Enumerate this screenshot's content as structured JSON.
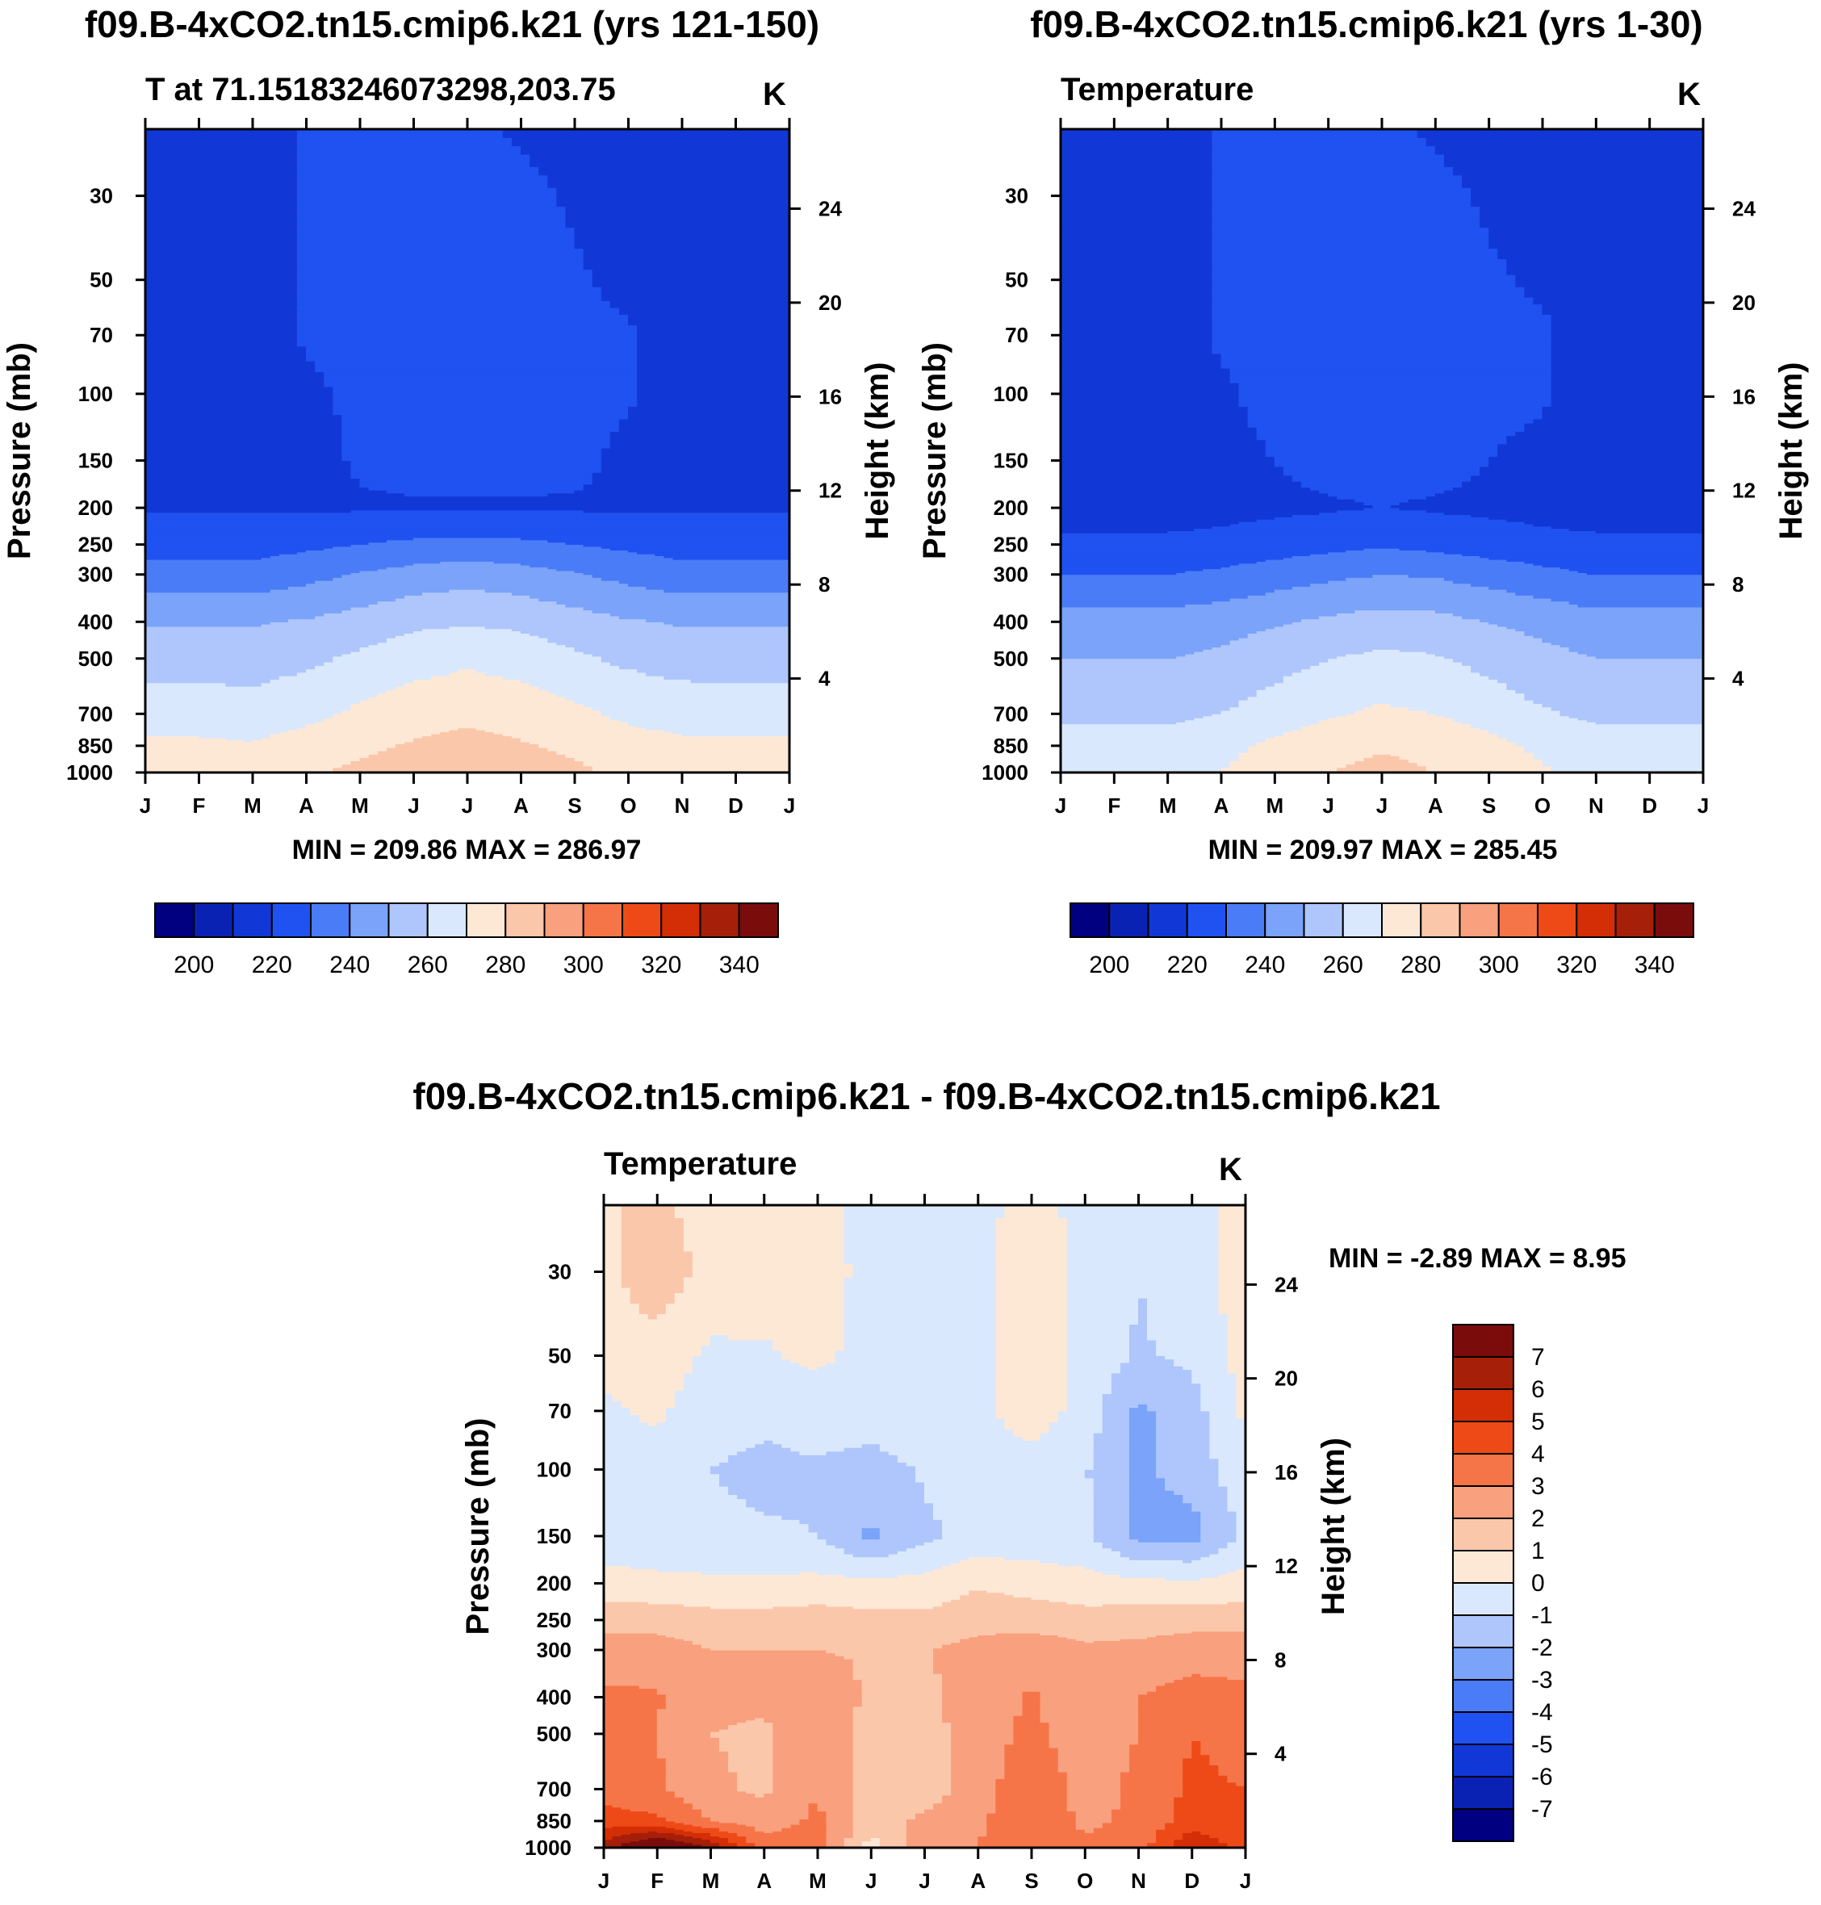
{
  "colors": {
    "palette": [
      "#000080",
      "#0a22b4",
      "#1138d6",
      "#1f52f0",
      "#4b7cf7",
      "#7aa3f9",
      "#aec6fb",
      "#d9e8fd",
      "#fde8d6",
      "#fbc7ab",
      "#f9a07e",
      "#f67548",
      "#ee4a18",
      "#d42e06",
      "#a51f09",
      "#7a0c0c"
    ]
  },
  "figure": {
    "panels": [
      {
        "title": "f09.B-4xCO2.tn15.cmip6.k21 (yrs 121-150)",
        "subtitle": "T at 71.15183246073298,203.75",
        "units": "K",
        "minmax": "MIN = 209.86 MAX = 286.97"
      },
      {
        "title": "f09.B-4xCO2.tn15.cmip6.k21 (yrs 1-30)",
        "subtitle": "Temperature",
        "units": "K",
        "minmax": "MIN = 209.97 MAX = 285.45"
      },
      {
        "title": "f09.B-4xCO2.tn15.cmip6.k21 - f09.B-4xCO2.tn15.cmip6.k21",
        "subtitle": "Temperature",
        "units": "K",
        "minmax": "MIN =  -2.89 MAX =   8.95"
      }
    ]
  },
  "chart_data": [
    {
      "type": "heatmap",
      "kind": "filled-contour",
      "title": "f09.B-4xCO2.tn15.cmip6.k21 (yrs 121-150)",
      "subtitle": "T at 71.15183246073298,203.75",
      "units": "K",
      "xlabel": "",
      "ylabel": "Pressure (mb)",
      "ylabel_right": "Height (km)",
      "x_ticks": [
        "J",
        "F",
        "M",
        "A",
        "M",
        "J",
        "J",
        "A",
        "S",
        "O",
        "N",
        "D",
        "J"
      ],
      "y_ticks": [
        "30",
        "50",
        "70",
        "100",
        "150",
        "200",
        "250",
        "300",
        "400",
        "500",
        "700",
        "850",
        "1000"
      ],
      "y_ticks_right": [
        "24",
        "20",
        "16",
        "12",
        "8",
        "4"
      ],
      "ylim": [
        1000,
        20
      ],
      "contour_levels": [
        200,
        210,
        220,
        230,
        240,
        250,
        260,
        270,
        280,
        290,
        300,
        310,
        320,
        330,
        340
      ],
      "colorbar_labels": [
        "200",
        "220",
        "240",
        "260",
        "280",
        "300",
        "320",
        "340"
      ],
      "min": 209.86,
      "max": 286.97,
      "months": [
        "J",
        "F",
        "M",
        "A",
        "M",
        "J",
        "J",
        "A",
        "S",
        "O",
        "N",
        "D",
        "J"
      ],
      "levels_mb": [
        1000,
        850,
        700,
        500,
        400,
        300,
        250,
        200,
        150,
        100,
        70,
        50,
        30,
        20
      ],
      "values": [
        [
          276,
          275,
          275,
          279,
          282,
          284,
          285,
          284,
          282,
          278,
          276,
          276,
          276
        ],
        [
          272,
          272,
          271,
          275,
          278,
          281,
          283,
          281,
          278,
          274,
          272,
          272,
          272
        ],
        [
          265,
          265,
          264,
          267,
          272,
          276,
          278,
          276,
          272,
          268,
          266,
          265,
          265
        ],
        [
          256,
          256,
          256,
          258,
          262,
          266,
          268,
          266,
          262,
          258,
          256,
          256,
          256
        ],
        [
          249,
          249,
          249,
          251,
          254,
          258,
          259,
          258,
          254,
          251,
          249,
          249,
          249
        ],
        [
          234,
          234,
          234,
          237,
          241,
          244,
          246,
          244,
          241,
          237,
          234,
          234,
          234
        ],
        [
          226,
          226,
          226,
          228,
          230,
          232,
          233,
          232,
          230,
          228,
          226,
          226,
          226
        ],
        [
          219,
          219,
          219,
          219,
          219,
          219,
          219,
          219,
          219,
          219,
          219,
          219,
          219
        ],
        [
          216,
          216,
          216,
          217,
          221,
          223,
          223,
          223,
          222,
          218,
          216,
          216,
          216
        ],
        [
          216,
          216,
          216,
          218,
          222,
          223,
          223,
          223,
          222,
          221,
          216,
          216,
          216
        ],
        [
          216,
          216,
          216,
          221,
          223,
          223,
          223,
          223,
          222,
          221,
          216,
          216,
          216
        ],
        [
          216,
          216,
          216,
          221,
          223,
          223,
          223,
          223,
          221,
          218,
          216,
          216,
          216
        ],
        [
          216,
          216,
          216,
          221,
          222,
          223,
          223,
          222,
          219,
          216,
          216,
          216,
          216
        ],
        [
          216,
          216,
          216,
          221,
          222,
          223,
          222,
          219,
          217,
          216,
          216,
          216,
          216
        ]
      ]
    },
    {
      "type": "heatmap",
      "kind": "filled-contour",
      "title": "f09.B-4xCO2.tn15.cmip6.k21 (yrs 1-30)",
      "subtitle": "Temperature",
      "units": "K",
      "xlabel": "",
      "ylabel": "Pressure (mb)",
      "ylabel_right": "Height (km)",
      "x_ticks": [
        "J",
        "F",
        "M",
        "A",
        "M",
        "J",
        "J",
        "A",
        "S",
        "O",
        "N",
        "D",
        "J"
      ],
      "y_ticks": [
        "30",
        "50",
        "70",
        "100",
        "150",
        "200",
        "250",
        "300",
        "400",
        "500",
        "700",
        "850",
        "1000"
      ],
      "y_ticks_right": [
        "24",
        "20",
        "16",
        "12",
        "8",
        "4"
      ],
      "ylim": [
        1000,
        20
      ],
      "contour_levels": [
        200,
        210,
        220,
        230,
        240,
        250,
        260,
        270,
        280,
        290,
        300,
        310,
        320,
        330,
        340
      ],
      "colorbar_labels": [
        "200",
        "220",
        "240",
        "260",
        "280",
        "300",
        "320",
        "340"
      ],
      "min": 209.97,
      "max": 285.45,
      "months": [
        "J",
        "F",
        "M",
        "A",
        "M",
        "J",
        "J",
        "A",
        "S",
        "O",
        "N",
        "D",
        "J"
      ],
      "levels_mb": [
        1000,
        850,
        700,
        500,
        400,
        300,
        250,
        200,
        150,
        100,
        70,
        50,
        30,
        20
      ],
      "values": [
        [
          268,
          268,
          268,
          270,
          276,
          280,
          283,
          280,
          276,
          271,
          268,
          268,
          268
        ],
        [
          264,
          264,
          264,
          267,
          272,
          276,
          279,
          277,
          273,
          268,
          265,
          264,
          264
        ],
        [
          258,
          258,
          258,
          260,
          265,
          269,
          272,
          270,
          266,
          261,
          258,
          258,
          258
        ],
        [
          250,
          250,
          250,
          252,
          256,
          260,
          262,
          261,
          257,
          253,
          250,
          250,
          250
        ],
        [
          244,
          244,
          244,
          246,
          249,
          252,
          254,
          253,
          250,
          247,
          244,
          244,
          244
        ],
        [
          230,
          230,
          230,
          232,
          235,
          238,
          240,
          239,
          236,
          233,
          230,
          230,
          230
        ],
        [
          222,
          222,
          222,
          223,
          225,
          227,
          229,
          227,
          225,
          223,
          222,
          222,
          222
        ],
        [
          216,
          216,
          216,
          217,
          218,
          219,
          220,
          219,
          218,
          217,
          216,
          216,
          216
        ],
        [
          216,
          216,
          216,
          218,
          220,
          223,
          223,
          223,
          220,
          218,
          216,
          216,
          216
        ],
        [
          216,
          216,
          216,
          219,
          222,
          223,
          223,
          223,
          222,
          221,
          216,
          216,
          216
        ],
        [
          216,
          216,
          216,
          221,
          222,
          223,
          223,
          223,
          222,
          221,
          217,
          216,
          216
        ],
        [
          216,
          216,
          216,
          221,
          222,
          223,
          223,
          223,
          221,
          219,
          216,
          216,
          216
        ],
        [
          216,
          216,
          216,
          221,
          222,
          223,
          223,
          222,
          219,
          216,
          216,
          216,
          216
        ],
        [
          216,
          216,
          216,
          221,
          222,
          223,
          222,
          219,
          217,
          216,
          216,
          216,
          216
        ]
      ]
    },
    {
      "type": "heatmap",
      "kind": "filled-contour",
      "title": "f09.B-4xCO2.tn15.cmip6.k21 - f09.B-4xCO2.tn15.cmip6.k21",
      "subtitle": "Temperature",
      "units": "K",
      "xlabel": "",
      "ylabel": "Pressure (mb)",
      "ylabel_right": "Height (km)",
      "x_ticks": [
        "J",
        "F",
        "M",
        "A",
        "M",
        "J",
        "J",
        "A",
        "S",
        "O",
        "N",
        "D",
        "J"
      ],
      "y_ticks": [
        "30",
        "50",
        "70",
        "100",
        "150",
        "200",
        "250",
        "300",
        "400",
        "500",
        "700",
        "850",
        "1000"
      ],
      "y_ticks_right": [
        "24",
        "20",
        "16",
        "12",
        "8",
        "4"
      ],
      "ylim": [
        1000,
        20
      ],
      "contour_levels": [
        -7,
        -6,
        -5,
        -4,
        -3,
        -2,
        -1,
        0,
        1,
        2,
        3,
        4,
        5,
        6,
        7
      ],
      "colorbar_labels": [
        "7",
        "6",
        "5",
        "4",
        "3",
        "2",
        "1",
        "0",
        "-1",
        "-2",
        "-3",
        "-4",
        "-5",
        "-6",
        "-7"
      ],
      "min": -2.89,
      "max": 8.95,
      "months": [
        "J",
        "F",
        "M",
        "A",
        "M",
        "J",
        "J",
        "A",
        "S",
        "O",
        "N",
        "D",
        "J"
      ],
      "levels_mb": [
        1000,
        850,
        700,
        500,
        400,
        300,
        250,
        200,
        150,
        100,
        70,
        50,
        30,
        20
      ],
      "values": [
        [
          6.5,
          8.9,
          7.0,
          3.5,
          3.8,
          0.5,
          2.5,
          3.0,
          4.0,
          3.2,
          3.5,
          6.0,
          4.5
        ],
        [
          4.5,
          4.2,
          3.0,
          2.5,
          3.2,
          1.5,
          2.2,
          2.8,
          3.8,
          2.8,
          3.2,
          4.5,
          4.2
        ],
        [
          3.6,
          3.2,
          2.2,
          1.8,
          3.0,
          1.5,
          1.5,
          2.5,
          3.8,
          2.6,
          3.2,
          4.2,
          4.0
        ],
        [
          3.4,
          3.0,
          2.0,
          1.8,
          2.8,
          1.5,
          1.5,
          2.6,
          3.2,
          2.5,
          3.0,
          4.0,
          3.6
        ],
        [
          3.2,
          3.1,
          2.3,
          2.2,
          2.8,
          1.8,
          1.8,
          2.5,
          3.1,
          2.5,
          3.0,
          3.4,
          3.2
        ],
        [
          2.5,
          2.5,
          2.0,
          2.0,
          2.0,
          1.9,
          1.9,
          2.4,
          2.6,
          2.2,
          2.3,
          2.6,
          2.6
        ],
        [
          1.6,
          1.6,
          1.4,
          1.4,
          1.5,
          1.3,
          1.3,
          1.6,
          1.6,
          1.4,
          1.5,
          1.6,
          1.6
        ],
        [
          0.4,
          0.3,
          0.2,
          0.2,
          0.3,
          0.3,
          0.3,
          0.9,
          0.6,
          0.4,
          0.3,
          0.2,
          0.4
        ],
        [
          -0.6,
          -0.8,
          -0.8,
          -0.9,
          -1.0,
          -2.2,
          -1.2,
          -0.7,
          -0.6,
          -0.8,
          -2.3,
          -2.4,
          -0.8
        ],
        [
          -0.6,
          -0.5,
          -1.0,
          -1.2,
          -1.1,
          -1.4,
          -0.9,
          -0.4,
          -0.5,
          -0.9,
          -2.2,
          -1.6,
          -0.3
        ],
        [
          -0.2,
          0.2,
          -0.7,
          -0.8,
          -0.6,
          -0.5,
          -0.3,
          -0.3,
          0.6,
          -0.4,
          -2.2,
          -1.4,
          0.2
        ],
        [
          0.4,
          0.6,
          -0.2,
          -0.1,
          0.2,
          -0.3,
          -0.2,
          -0.3,
          0.6,
          -0.3,
          -1.1,
          -0.8,
          0.4
        ],
        [
          0.8,
          1.6,
          0.7,
          0.4,
          0.3,
          -0.2,
          -0.2,
          -0.3,
          0.5,
          -0.3,
          -1.0,
          -0.6,
          0.6
        ],
        [
          0.9,
          1.2,
          0.6,
          0.5,
          0.3,
          -0.3,
          -0.2,
          -0.3,
          0.4,
          -0.3,
          -1.0,
          -0.6,
          0.6
        ]
      ]
    }
  ]
}
